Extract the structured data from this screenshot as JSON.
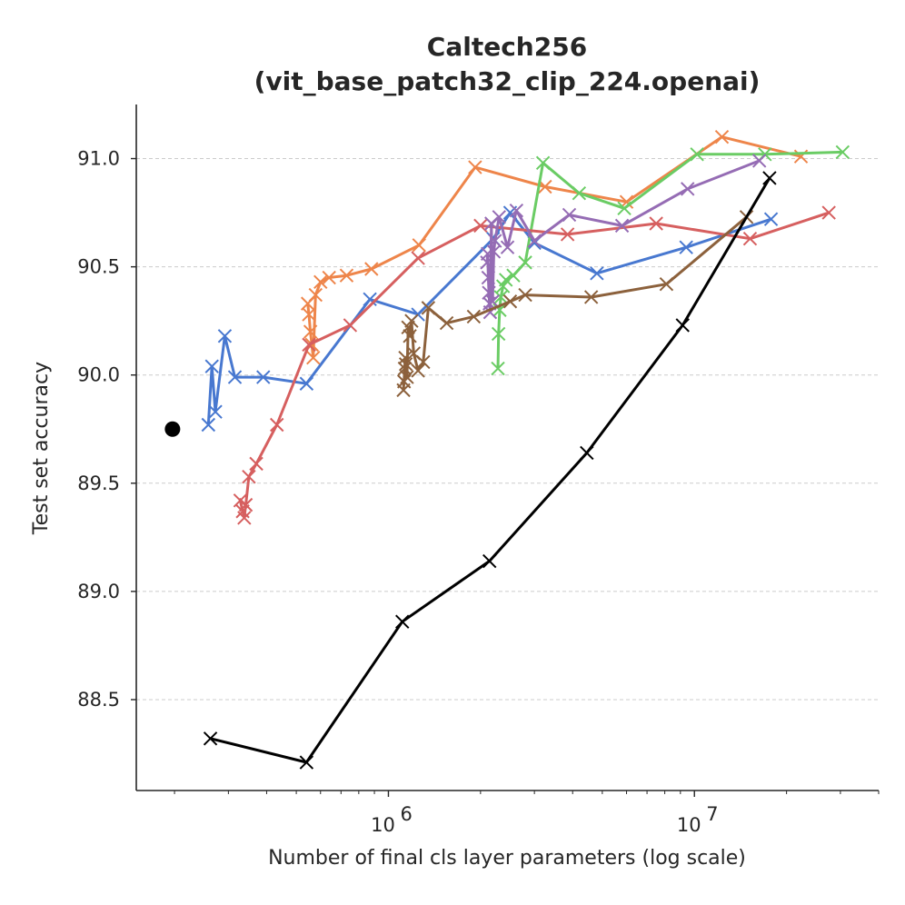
{
  "chart_data": {
    "type": "line",
    "title_line1": "Caltech256",
    "title_line2": "(vit_base_patch32_clip_224.openai)",
    "xlabel": "Number of final cls layer parameters (log scale)",
    "ylabel": "Test set accuracy",
    "xscale": "log",
    "xlim": [
      150000,
      40000000
    ],
    "ylim": [
      88.08,
      91.25
    ],
    "grid": "horizontal dashed",
    "yticks": [
      88.5,
      89.0,
      89.5,
      90.0,
      90.5,
      91.0
    ],
    "ytick_labels": [
      "88.5",
      "89.0",
      "89.5",
      "90.0",
      "90.5",
      "91.0"
    ],
    "xticks": [
      1000000,
      10000000
    ],
    "xtick_labels": [
      {
        "base": "10",
        "exp": "6"
      },
      {
        "base": "10",
        "exp": "7"
      }
    ],
    "baseline_point": {
      "x": 197000,
      "y": 89.75,
      "color": "#000000"
    },
    "series": [
      {
        "name": "blue",
        "color": "#4878d0",
        "x": [
          258000,
          265000,
          272000,
          292000,
          315000,
          390000,
          540000,
          870000,
          1250000,
          2200000,
          2500000,
          3000000,
          4800000,
          9400000,
          17800000
        ],
        "y": [
          89.77,
          90.04,
          89.83,
          90.18,
          89.99,
          89.99,
          89.96,
          90.35,
          90.28,
          90.63,
          90.75,
          90.61,
          90.47,
          90.59,
          90.72
        ]
      },
      {
        "name": "orange",
        "color": "#ee854a",
        "x": [
          545000,
          550000,
          556000,
          562000,
          568000,
          578000,
          600000,
          640000,
          730000,
          880000,
          1260000,
          1920000,
          3250000,
          6000000,
          12300000,
          22300000
        ],
        "y": [
          90.33,
          90.28,
          90.2,
          90.14,
          90.08,
          90.37,
          90.43,
          90.45,
          90.46,
          90.49,
          90.6,
          90.96,
          90.87,
          90.8,
          91.1,
          91.01
        ]
      },
      {
        "name": "green",
        "color": "#6acc64",
        "x": [
          2280000,
          2290000,
          2310000,
          2330000,
          2370000,
          2420000,
          2560000,
          2800000,
          3200000,
          4200000,
          5900000,
          10200000,
          17000000,
          30500000
        ],
        "y": [
          90.03,
          90.19,
          90.3,
          90.36,
          90.41,
          90.44,
          90.46,
          90.52,
          90.98,
          90.84,
          90.77,
          91.02,
          91.02,
          91.03
        ]
      },
      {
        "name": "red",
        "color": "#d65f5f",
        "x": [
          328000,
          334000,
          338000,
          342000,
          350000,
          370000,
          432000,
          550000,
          750000,
          1250000,
          2000000,
          3850000,
          7500000,
          15200000,
          27500000
        ],
        "y": [
          89.42,
          89.37,
          89.34,
          89.4,
          89.53,
          89.59,
          89.77,
          90.14,
          90.23,
          90.54,
          90.69,
          90.65,
          90.7,
          90.63,
          90.75
        ]
      },
      {
        "name": "purple",
        "color": "#956cb4",
        "x": [
          2100000,
          2110000,
          2120000,
          2130000,
          2140000,
          2150000,
          2170000,
          2190000,
          2210000,
          2230000,
          2300000,
          2450000,
          2620000,
          3000000,
          3900000,
          5800000,
          9500000,
          16300000
        ],
        "y": [
          90.52,
          90.56,
          90.45,
          90.38,
          90.33,
          90.29,
          90.7,
          90.34,
          90.57,
          90.62,
          90.73,
          90.59,
          90.76,
          90.62,
          90.74,
          90.69,
          90.86,
          90.99
        ]
      },
      {
        "name": "brown",
        "color": "#8c613c",
        "x": [
          1120000,
          1125000,
          1130000,
          1135000,
          1140000,
          1150000,
          1160000,
          1175000,
          1190000,
          1210000,
          1250000,
          1300000,
          1350000,
          1550000,
          1900000,
          2500000,
          2800000,
          4600000,
          8100000,
          14800000
        ],
        "y": [
          89.93,
          89.97,
          90.03,
          90.08,
          90.05,
          89.99,
          90.22,
          90.18,
          90.25,
          90.1,
          90.02,
          90.06,
          90.31,
          90.24,
          90.27,
          90.34,
          90.37,
          90.36,
          90.42,
          90.73
        ]
      },
      {
        "name": "black",
        "color": "#000000",
        "x": [
          262000,
          540000,
          1110000,
          2140000,
          4450000,
          9150000,
          17600000
        ],
        "y": [
          88.32,
          88.21,
          88.86,
          89.14,
          89.64,
          90.23,
          90.91
        ]
      }
    ]
  }
}
